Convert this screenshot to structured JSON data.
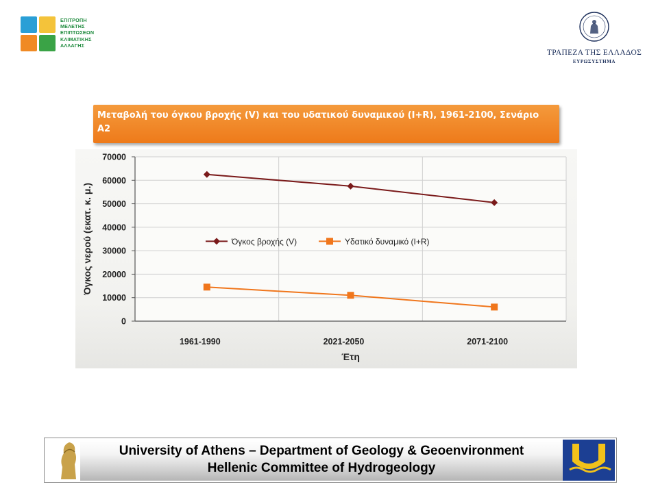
{
  "header": {
    "left_logo_lines": [
      "ΕΠΙΤΡΟΠΗ",
      "ΜΕΛΕΤΗΣ",
      "ΕΠΙΠΤΩΣΕΩΝ",
      "ΚΛΙΜΑΤΙΚΗΣ",
      "ΑΛΛΑΓΗΣ"
    ],
    "right_logo_name": "ΤΡΑΠΕΖΑ ΤΗΣ ΕΛΛΑΔΟΣ",
    "right_logo_sub": "ΕΥΡΩΣΥΣΤΗΜΑ"
  },
  "chart_data": {
    "type": "line",
    "title": "Μεταβολή του όγκου βροχής (V) και του υδατικού δυναμικού (I+R), 1961-2100, Σενάριο Α2",
    "xlabel": "Έτη",
    "ylabel": "Όγκος νερού (εκατ. κ. μ.)",
    "categories": [
      "1961-1990",
      "2021-2050",
      "2071-2100"
    ],
    "ylim": [
      0,
      70000
    ],
    "yticks": [
      "0",
      "10000",
      "20000",
      "30000",
      "40000",
      "50000",
      "60000",
      "70000"
    ],
    "grid": true,
    "legend_position": "middle",
    "series": [
      {
        "name": "Όγκος βροχής (V)",
        "values": [
          62500,
          57500,
          50500
        ],
        "color": "#7a1a1a",
        "marker": "diamond"
      },
      {
        "name": "Υδατικό δυναμικό (I+R)",
        "values": [
          14500,
          11000,
          6000
        ],
        "color": "#f0761c",
        "marker": "square"
      }
    ]
  },
  "footer": {
    "line1": "University of Athens – Department of Geology & Geoenvironment",
    "line2": "Hellenic Committee of Hydrogeology"
  }
}
